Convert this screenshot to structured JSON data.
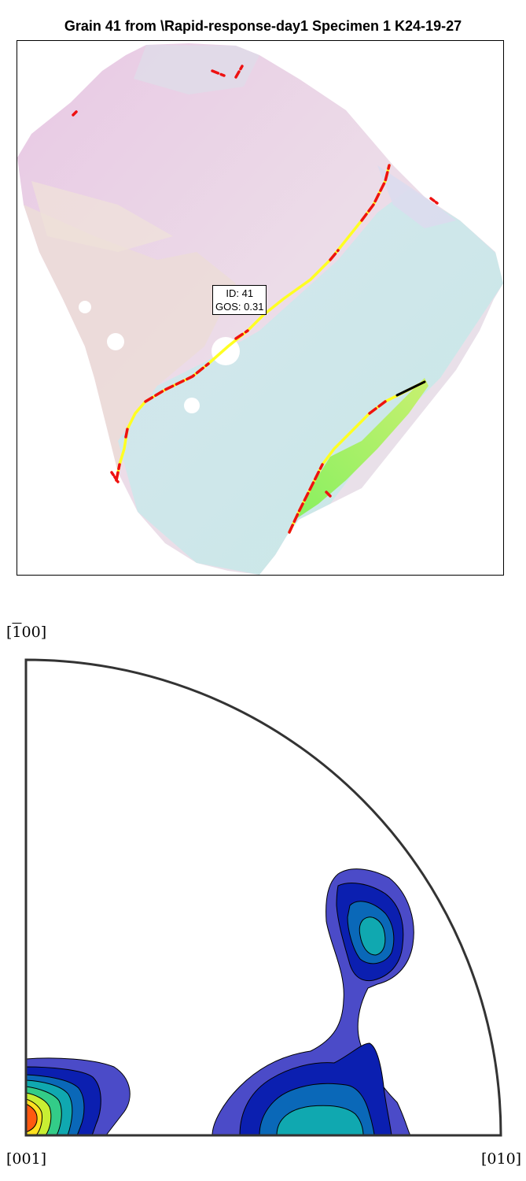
{
  "map": {
    "title": "Grain 41 from \\Rapid-response-day1 Specimen 1 K24-19-27",
    "grain_label": {
      "line1": "ID: 41",
      "line2": "GOS: 0.31"
    },
    "boundary_colors": {
      "red": "#ee1111",
      "yellow": "#ffff22",
      "black": "#000000"
    }
  },
  "pole_figure": {
    "top_label": "[̄100]",
    "top_label_text": "[1̄ 00]",
    "left_label": "[001]",
    "right_label": "[010]",
    "contour_colors": [
      "#4b4bc8",
      "#0b1fb0",
      "#0a68b8",
      "#10a8b0",
      "#33cc88",
      "#c8ee33",
      "#ff5a10"
    ]
  }
}
